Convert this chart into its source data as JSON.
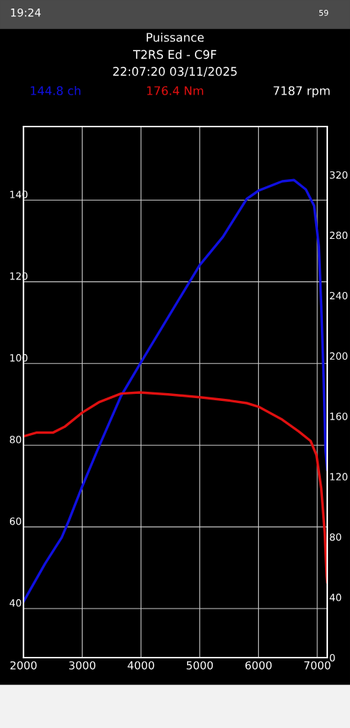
{
  "chart_data": {
    "type": "line",
    "title": "Puissance",
    "subtitle": "T2RS Ed - C9F\n22:07:20 03/11/2025",
    "annotations": [
      "7187 rpm",
      "19:24",
      "59"
    ],
    "xlim": [
      2000,
      7170
    ],
    "xticks": [
      2000,
      3000,
      4000,
      5000,
      6000,
      7000
    ],
    "ylim": [
      28,
      158
    ],
    "yticks": [
      40,
      60,
      80,
      100,
      120,
      140
    ],
    "y2lim": [
      0,
      352
    ],
    "y2ticks": [
      0,
      40,
      80,
      120,
      160,
      200,
      240,
      280,
      320
    ],
    "grid": true,
    "legend": "top",
    "line_style": "solid",
    "series": [
      {
        "name": "144.8 ch",
        "color": "#1010e0",
        "x": [
          2000,
          2367,
          2650,
          2771,
          3000,
          3295,
          3659,
          4000,
          4390,
          5000,
          5395,
          5800,
          6000,
          6405,
          6605,
          6806,
          6947,
          7027,
          7068,
          7108,
          7140,
          7170
        ],
        "values": [
          41.7,
          51.0,
          57.4,
          61.5,
          69.9,
          80,
          92,
          100.3,
          109.6,
          124.1,
          131,
          140.3,
          142.3,
          144.6,
          144.9,
          142.6,
          138.6,
          128.7,
          114.2,
          96.8,
          78.9,
          74
        ]
      },
      {
        "name": "176.4 Nm",
        "color": "#e01010",
        "axis": "y2",
        "x": [
          2000,
          2218,
          2500,
          2700,
          3000,
          3295,
          3659,
          3981,
          4465,
          5000,
          5515,
          5800,
          6000,
          6405,
          6685,
          6887,
          6987,
          7068,
          7128,
          7160,
          7170
        ],
        "values": [
          146.7,
          149.1,
          149.1,
          153,
          162.4,
          169.5,
          175,
          175.8,
          174.5,
          172.6,
          170.3,
          168.7,
          166.3,
          157.7,
          149.9,
          143.6,
          134.2,
          112.2,
          82.4,
          54.1,
          50
        ]
      }
    ]
  }
}
